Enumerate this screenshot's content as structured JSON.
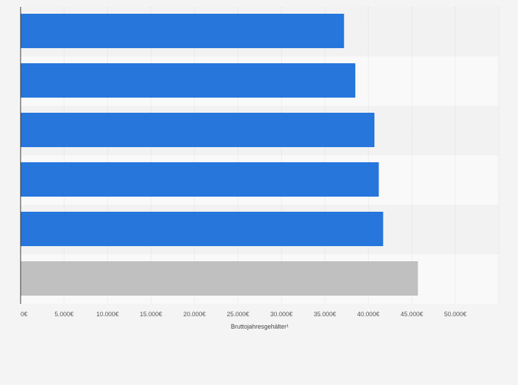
{
  "chart_data": {
    "type": "bar",
    "orientation": "horizontal",
    "categories": [
      "",
      "",
      "",
      "",
      "",
      ""
    ],
    "values": [
      37200,
      38500,
      40700,
      41200,
      41700,
      45700
    ],
    "xlabel": "Bruttojahresgehälter¹",
    "xlim": [
      0,
      55000
    ],
    "x_ticks": [
      0,
      5000,
      10000,
      15000,
      20000,
      25000,
      30000,
      35000,
      40000,
      45000,
      50000
    ],
    "x_tick_labels": [
      "0€",
      "5.000€",
      "10.000€",
      "15.000€",
      "20.000€",
      "25.000€",
      "30.000€",
      "35.000€",
      "40.000€",
      "45.000€",
      "50.000€"
    ],
    "grid": true,
    "colors": {
      "bar": "#2676dc",
      "highlight_bar": "#c0c0c0",
      "band_dark": "#f2f2f2",
      "band_light": "#f9f9f9",
      "grid": "#d6d6d6",
      "axis": "#333333"
    },
    "highlight_index": 5
  }
}
